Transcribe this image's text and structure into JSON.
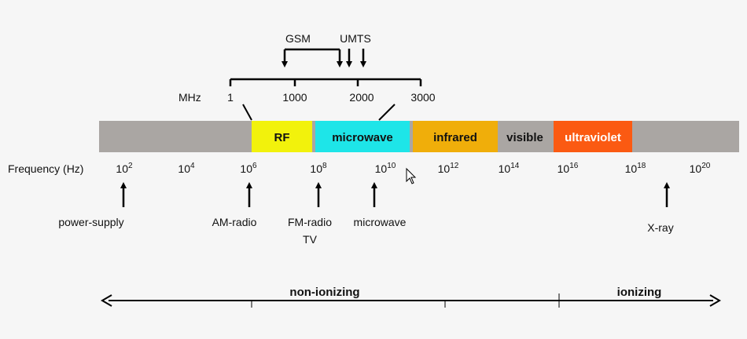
{
  "mhz_scale": {
    "unit": "MHz",
    "ticks": [
      "1",
      "1000",
      "2000",
      "3000"
    ],
    "gsm_label": "GSM",
    "umts_label": "UMTS"
  },
  "spectrum_bands": [
    {
      "label": "RF",
      "color": "#f2f20c"
    },
    {
      "label": "microwave",
      "color": "#1ee5e8"
    },
    {
      "label": "infrared",
      "color": "#f0ae0a"
    },
    {
      "label": "visible",
      "color": "#aaa6a3"
    },
    {
      "label": "ultraviolet",
      "color": "#fb5a12"
    }
  ],
  "bar_color": "#aaa6a3",
  "frequency_axis": {
    "label": "Frequency (Hz)",
    "ticks": [
      {
        "base": "10",
        "exp": "2"
      },
      {
        "base": "10",
        "exp": "4"
      },
      {
        "base": "10",
        "exp": "6"
      },
      {
        "base": "10",
        "exp": "8"
      },
      {
        "base": "10",
        "exp": "10"
      },
      {
        "base": "10",
        "exp": "12"
      },
      {
        "base": "10",
        "exp": "14"
      },
      {
        "base": "10",
        "exp": "16"
      },
      {
        "base": "10",
        "exp": "18"
      },
      {
        "base": "10",
        "exp": "20"
      }
    ]
  },
  "sources": [
    {
      "label": "power-supply"
    },
    {
      "label": "AM-radio"
    },
    {
      "label": "FM-radio",
      "label2": "TV"
    },
    {
      "label": "microwave"
    },
    {
      "label": "X-ray"
    }
  ],
  "ionization": {
    "left": "non-ionizing",
    "right": "ionizing"
  }
}
